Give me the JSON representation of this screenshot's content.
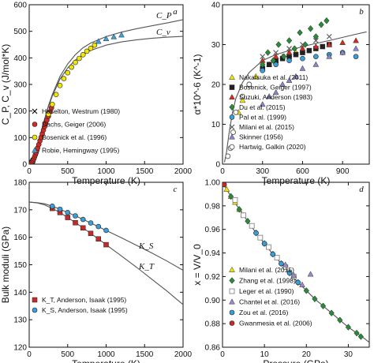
{
  "chart_data": [
    {
      "type": "scatter",
      "panel": "a",
      "xlabel": "Temperature (K)",
      "ylabel": "C_P, C_v (J/mol*K)",
      "xlim": [
        0,
        2000
      ],
      "ylim": [
        0,
        600
      ],
      "xticks": [
        "0",
        "500",
        "1000",
        "1500",
        "2000"
      ],
      "yticks": [
        "0",
        "100",
        "200",
        "300",
        "400",
        "500",
        "600"
      ],
      "legend_position": "bottom-right",
      "curves": [
        {
          "name": "C_P",
          "x": [
            0,
            30,
            60,
            100,
            150,
            200,
            250,
            300,
            400,
            500,
            600,
            700,
            800,
            1000,
            1200,
            1400,
            1600,
            1800,
            2000
          ],
          "y": [
            0,
            3,
            20,
            60,
            115,
            170,
            220,
            262,
            330,
            377,
            412,
            438,
            456,
            480,
            497,
            510,
            521,
            532,
            544
          ]
        },
        {
          "name": "C_v",
          "x": [
            0,
            30,
            60,
            100,
            150,
            200,
            250,
            300,
            400,
            500,
            600,
            700,
            800,
            1000,
            1200,
            1400,
            1600,
            1800,
            2000
          ],
          "y": [
            0,
            3,
            20,
            60,
            115,
            168,
            216,
            256,
            320,
            362,
            392,
            412,
            428,
            448,
            460,
            468,
            474,
            478,
            481
          ]
        }
      ],
      "series": [
        {
          "name": "Haselton, Westrum (1980)",
          "marker": "x",
          "color": "#000000",
          "x": [
            10,
            15,
            20,
            25,
            30,
            40,
            50
          ],
          "y": [
            0.5,
            1,
            2,
            3,
            5,
            9,
            14
          ]
        },
        {
          "name": "Dachs, Geiger (2006)",
          "marker": "circle",
          "color": "#d42a20",
          "x": [
            6,
            10,
            15,
            20,
            25,
            30,
            40,
            50,
            60,
            70,
            80,
            90,
            100,
            110,
            125,
            140,
            155,
            170,
            185,
            200,
            215,
            230,
            250,
            270,
            290
          ],
          "y": [
            0.3,
            0.6,
            1,
            2,
            3,
            5,
            9,
            14,
            20,
            27,
            35,
            43,
            52,
            61,
            74,
            88,
            101,
            114,
            128,
            141,
            154,
            166,
            180,
            197,
            212
          ]
        },
        {
          "name": "Bosenick et al. (1996)",
          "marker": "circle",
          "color": "#f2e600",
          "x": [
            250,
            300,
            350,
            400,
            450,
            500,
            550,
            600,
            650,
            700,
            750,
            800,
            850
          ],
          "y": [
            188,
            225,
            262,
            296,
            322,
            344,
            365,
            383,
            398,
            412,
            425,
            436,
            448
          ]
        },
        {
          "name": "Robie, Hemingway (1995)",
          "marker": "triangle",
          "color": "#3a9fd8",
          "x": [
            900,
            1000,
            1100,
            1200
          ],
          "y": [
            462,
            472,
            479,
            486
          ]
        }
      ],
      "annotations": [
        "C_P",
        "C_v",
        "a"
      ]
    },
    {
      "type": "scatter",
      "panel": "b",
      "xlabel": "Temperature (K)",
      "ylabel": "α*10^-6 (K^-1)",
      "xlim": [
        0,
        1100
      ],
      "ylim": [
        0,
        40
      ],
      "xticks": [
        "0",
        "300",
        "600",
        "900"
      ],
      "yticks": [
        "0",
        "10",
        "20",
        "30",
        "40"
      ],
      "legend_position": "bottom-right",
      "curves": [
        {
          "name": "fit",
          "x": [
            15,
            30,
            50,
            75,
            100,
            150,
            200,
            300,
            400,
            500,
            600,
            700,
            800,
            900,
            1000,
            1080
          ],
          "y": [
            0.5,
            3,
            8,
            13,
            16.5,
            20.5,
            23,
            26,
            27.5,
            28.5,
            29.5,
            30.3,
            31,
            31.8,
            32.6,
            33.2
          ]
        }
      ],
      "series": [
        {
          "name": "Nakatsuka et al. (2011)",
          "marker": "triangle",
          "color": "#f2e600",
          "x": [
            120,
            150,
            200,
            250,
            300,
            350,
            400,
            450,
            500,
            550,
            600
          ],
          "y": [
            13,
            16,
            20,
            22,
            24,
            25,
            26,
            27,
            27.5,
            28,
            28.5
          ]
        },
        {
          "name": "Bosenick, Geiger (1997)",
          "marker": "square",
          "color": "#222222",
          "x": [
            300,
            350,
            400,
            450,
            500,
            550,
            600,
            650,
            700,
            750,
            800
          ],
          "y": [
            24,
            25,
            26,
            26.5,
            27,
            27.5,
            28,
            28.5,
            29,
            29.5,
            30
          ]
        },
        {
          "name": "Suzuki, Anderson (1983)",
          "marker": "triangle",
          "color": "#d42a20",
          "x": [
            300,
            400,
            500,
            600,
            700,
            800,
            900,
            1000
          ],
          "y": [
            26,
            27,
            28,
            29,
            29.5,
            30,
            30.5,
            31
          ]
        },
        {
          "name": "Du et al. (2015)",
          "marker": "diamond",
          "color": "#2a8a3a",
          "x": [
            300,
            340,
            380,
            420,
            460,
            500,
            540,
            580,
            620,
            660,
            700,
            740,
            780
          ],
          "y": [
            25,
            28,
            26,
            30,
            27,
            31,
            29,
            33,
            30,
            34,
            32,
            35,
            36
          ]
        },
        {
          "name": "Pal et al. (1999)",
          "marker": "circle",
          "color": "#3a9fd8",
          "x": [
            300,
            400,
            500,
            600,
            700,
            800,
            900,
            1000
          ],
          "y": [
            23.5,
            25,
            26,
            26.5,
            27,
            27.5,
            28,
            27
          ]
        },
        {
          "name": "Milani et al. (2015)",
          "marker": "x",
          "color": "#555555",
          "x": [
            300,
            400,
            500,
            600,
            700,
            800
          ],
          "y": [
            27,
            28,
            29,
            30,
            31,
            32
          ]
        },
        {
          "name": "Skinner (1956)",
          "marker": "triangle",
          "color": "#8888c8",
          "x": [
            300,
            350,
            400,
            450,
            500,
            550,
            600,
            700,
            800,
            900,
            1000
          ],
          "y": [
            15,
            17,
            18,
            20,
            21,
            22,
            24,
            25,
            27,
            28,
            29
          ]
        },
        {
          "name": "Hartwig, Galkin (2020)",
          "marker": "circle-open",
          "color": "#555555",
          "x": [
            40,
            60,
            80,
            100,
            150,
            200
          ],
          "y": [
            2,
            4,
            8,
            13,
            17,
            20
          ]
        }
      ],
      "annotations": [
        "b"
      ]
    },
    {
      "type": "line",
      "panel": "c",
      "xlabel": "Temperature (K)",
      "ylabel": "Bulk moduli (GPa)",
      "xlim": [
        0,
        2000
      ],
      "ylim": [
        120,
        180
      ],
      "xticks": [
        "0",
        "500",
        "1000",
        "1500",
        "2000"
      ],
      "yticks": [
        "120",
        "130",
        "140",
        "150",
        "160",
        "170",
        "180"
      ],
      "legend_position": "bottom-left",
      "curves": [
        {
          "name": "K_S",
          "x": [
            0,
            100,
            200,
            300,
            400,
            500,
            600,
            700,
            800,
            1000,
            1200,
            1400,
            1600,
            1800,
            2000
          ],
          "y": [
            172.8,
            172.6,
            172.2,
            171.3,
            170.2,
            169,
            167.8,
            166.5,
            165.2,
            162.5,
            159.8,
            157,
            154.2,
            151.2,
            148
          ]
        },
        {
          "name": "K_T",
          "x": [
            0,
            100,
            200,
            300,
            400,
            500,
            600,
            700,
            800,
            1000,
            1200,
            1400,
            1600,
            1800,
            2000
          ],
          "y": [
            172.8,
            172.5,
            171.8,
            170.5,
            169,
            167.2,
            165.3,
            163.4,
            161.4,
            157.3,
            153.2,
            149,
            144.6,
            140.2,
            135.5
          ]
        }
      ],
      "series": [
        {
          "name": "K_T, Anderson, Isaak (1995)",
          "marker": "square",
          "color": "#c42a2a",
          "x": [
            300,
            400,
            500,
            600,
            700,
            800,
            900,
            1000
          ],
          "y": [
            170.5,
            169,
            167.2,
            165.3,
            163.4,
            161.4,
            159.4,
            157.3
          ]
        },
        {
          "name": "K_S, Anderson, Isaak (1995)",
          "marker": "circle",
          "color": "#3a9fd8",
          "x": [
            300,
            400,
            500,
            600,
            700,
            800,
            900,
            1000
          ],
          "y": [
            171.3,
            170.2,
            169,
            167.8,
            166.5,
            165.2,
            163.9,
            162.5
          ]
        }
      ],
      "annotations": [
        "K_S",
        "K_T",
        "c"
      ]
    },
    {
      "type": "scatter",
      "panel": "d",
      "xlabel": "Pressure (GPa)",
      "ylabel": "x = V/V_0",
      "xlim": [
        0,
        35
      ],
      "ylim": [
        0.86,
        1.0
      ],
      "xticks": [
        "0",
        "10",
        "20",
        "30"
      ],
      "yticks": [
        "0.86",
        "0.88",
        "0.90",
        "0.92",
        "0.94",
        "0.96",
        "0.98",
        "1.00"
      ],
      "legend_position": "bottom-left",
      "curves": [
        {
          "name": "fit",
          "x": [
            0,
            2,
            4,
            6,
            8,
            10,
            12,
            14,
            16,
            18,
            20,
            22,
            24,
            26,
            28,
            30,
            32,
            34,
            35
          ],
          "y": [
            1.0,
            0.988,
            0.977,
            0.967,
            0.957,
            0.948,
            0.939,
            0.931,
            0.923,
            0.915,
            0.908,
            0.901,
            0.895,
            0.889,
            0.883,
            0.877,
            0.872,
            0.867,
            0.864
          ]
        }
      ],
      "series": [
        {
          "name": "Milani et al. (2015)",
          "marker": "triangle",
          "color": "#f2e600",
          "x": [
            1,
            2,
            3,
            4,
            5
          ],
          "y": [
            0.994,
            0.988,
            0.983,
            0.977,
            0.972
          ]
        },
        {
          "name": "Zhang et al. (1998)",
          "marker": "diamond",
          "color": "#2a8a3a",
          "x": [
            2,
            4,
            6,
            8,
            10,
            12,
            14,
            16,
            18,
            20,
            22,
            24,
            26,
            28,
            30,
            32,
            33
          ],
          "y": [
            0.988,
            0.977,
            0.967,
            0.957,
            0.948,
            0.939,
            0.931,
            0.923,
            0.915,
            0.908,
            0.901,
            0.895,
            0.889,
            0.883,
            0.877,
            0.872,
            0.869
          ]
        },
        {
          "name": "Leger et al. (1990)",
          "marker": "square-open",
          "color": "#888888",
          "x": [
            3,
            5,
            7,
            9,
            11,
            13,
            15,
            17
          ],
          "y": [
            0.985,
            0.972,
            0.963,
            0.953,
            0.945,
            0.936,
            0.928,
            0.92
          ]
        },
        {
          "name": "Chantel et al. (2016)",
          "marker": "triangle",
          "color": "#9a8ac8",
          "x": [
            15,
            17,
            19,
            21
          ],
          "y": [
            0.93,
            0.921,
            0.913,
            0.922
          ]
        },
        {
          "name": "Zou et al. (2016)",
          "marker": "circle",
          "color": "#3a9fd8",
          "x": [
            8,
            10,
            12,
            14,
            16,
            18
          ],
          "y": [
            0.957,
            0.948,
            0.939,
            0.931,
            0.923,
            0.915
          ]
        },
        {
          "name": "Gwanmesia et al. (2006)",
          "marker": "circle",
          "color": "#c42a2a",
          "x": [
            0.2,
            0.4
          ],
          "y": [
            0.999,
            0.998
          ]
        }
      ],
      "annotations": [
        "d"
      ]
    }
  ]
}
